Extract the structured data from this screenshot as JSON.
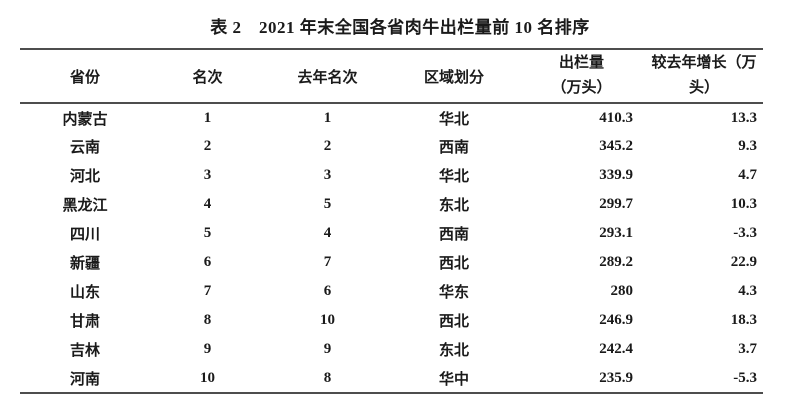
{
  "page": {
    "background": "#ffffff",
    "text_color": "#1a1a1a",
    "rule_color": "#4d4d4d"
  },
  "table": {
    "title": "表 2　2021 年末全国各省肉牛出栏量前 10 名排序",
    "headers": {
      "province": "省份",
      "rank": "名次",
      "last_year_rank": "去年名次",
      "region": "区域划分",
      "output_line1": "出栏量",
      "output_line2": "（万头）",
      "growth_line1": "较去年增长（万",
      "growth_line2": "头）"
    },
    "rows": [
      [
        "内蒙古",
        "1",
        "1",
        "华北",
        "410.3",
        "13.3"
      ],
      [
        "云南",
        "2",
        "2",
        "西南",
        "345.2",
        "9.3"
      ],
      [
        "河北",
        "3",
        "3",
        "华北",
        "339.9",
        "4.7"
      ],
      [
        "黑龙江",
        "4",
        "5",
        "东北",
        "299.7",
        "10.3"
      ],
      [
        "四川",
        "5",
        "4",
        "西南",
        "293.1",
        "-3.3"
      ],
      [
        "新疆",
        "6",
        "7",
        "西北",
        "289.2",
        "22.9"
      ],
      [
        "山东",
        "7",
        "6",
        "华东",
        "280",
        "4.3"
      ],
      [
        "甘肃",
        "8",
        "10",
        "西北",
        "246.9",
        "18.3"
      ],
      [
        "吉林",
        "9",
        "9",
        "东北",
        "242.4",
        "3.7"
      ],
      [
        "河南",
        "10",
        "8",
        "华中",
        "235.9",
        "-5.3"
      ]
    ]
  }
}
